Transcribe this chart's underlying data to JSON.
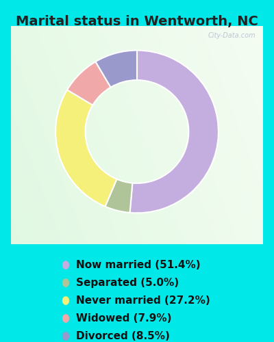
{
  "title": "Marital status in Wentworth, NC",
  "slices": [
    {
      "label": "Now married (51.4%)",
      "value": 51.4,
      "color": "#c4aee0"
    },
    {
      "label": "Separated (5.0%)",
      "value": 5.0,
      "color": "#b0c499"
    },
    {
      "label": "Never married (27.2%)",
      "value": 27.2,
      "color": "#f5f07a"
    },
    {
      "label": "Widowed (7.9%)",
      "value": 7.9,
      "color": "#f0a8a8"
    },
    {
      "label": "Divorced (8.5%)",
      "value": 8.5,
      "color": "#9999cc"
    }
  ],
  "bg_outer": "#00e8e8",
  "bg_inner_colors": [
    "#e8f5ee",
    "#f5faf7",
    "#ffffff"
  ],
  "watermark": "City-Data.com",
  "title_fontsize": 14,
  "legend_fontsize": 11,
  "start_angle": 90,
  "donut_outer_r": 0.78,
  "donut_width": 0.3
}
